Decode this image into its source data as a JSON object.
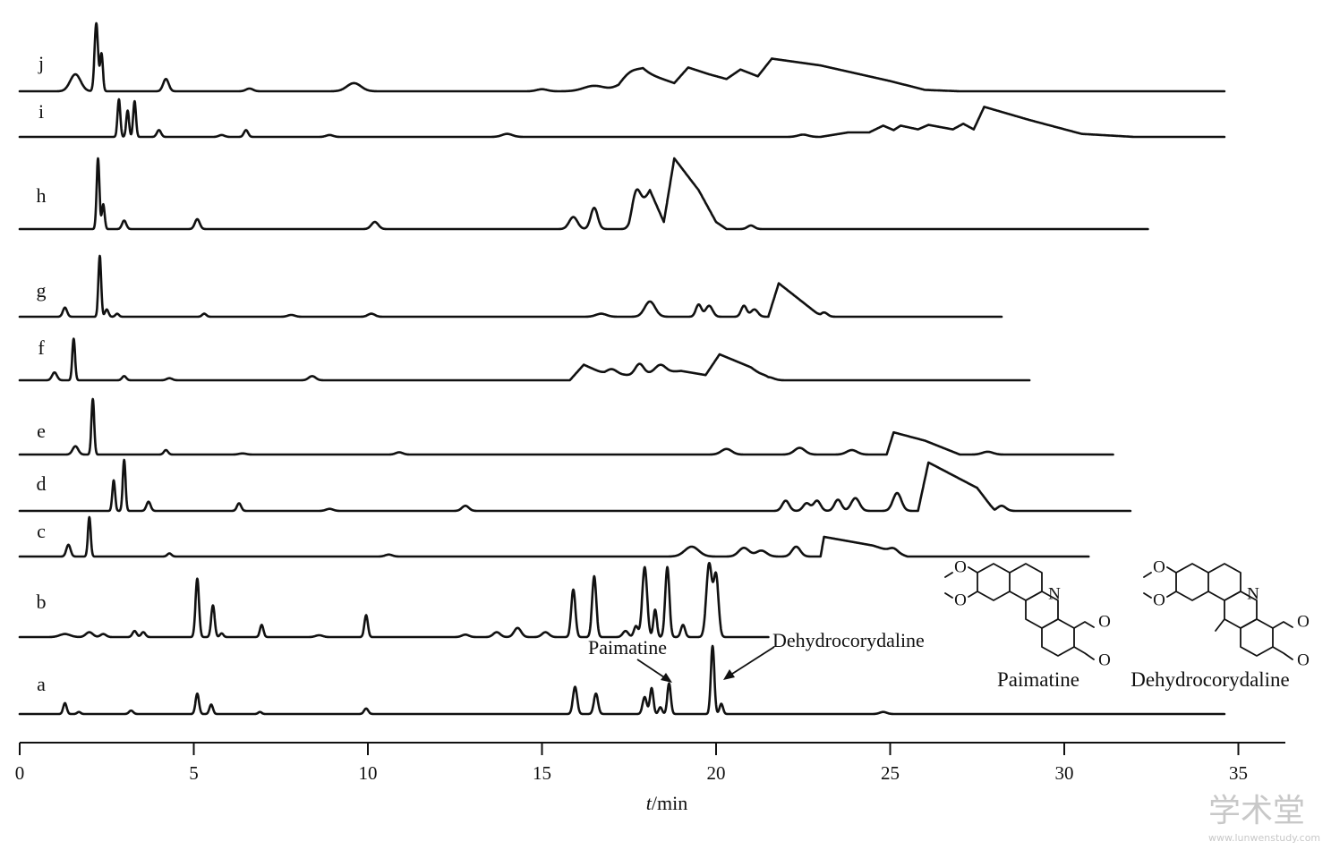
{
  "chart_data": {
    "type": "line",
    "xlabel_italic": "t",
    "xlabel_rest": "/min",
    "xlim": [
      0,
      35
    ],
    "xticks": [
      0,
      5,
      10,
      15,
      20,
      25,
      30,
      35
    ],
    "series": [
      {
        "name": "j",
        "x_end": 34.6,
        "peaks": [
          [
            1.6,
            0.25,
            0.15
          ],
          [
            2.2,
            1.0,
            0.05
          ],
          [
            2.35,
            0.55,
            0.04
          ],
          [
            4.2,
            0.18,
            0.08
          ],
          [
            6.6,
            0.04,
            0.1
          ],
          [
            9.6,
            0.12,
            0.2
          ],
          [
            15,
            0.03,
            0.15
          ],
          [
            16.5,
            0.08,
            0.3
          ],
          [
            17.5,
            0.15,
            0.3
          ]
        ],
        "hump": [
          [
            17.2,
            0.0
          ],
          [
            17.9,
            0.28
          ],
          [
            18.8,
            0.12
          ],
          [
            19.2,
            0.35
          ],
          [
            19.8,
            0.25
          ],
          [
            20.3,
            0.18
          ],
          [
            20.7,
            0.32
          ],
          [
            21.2,
            0.22
          ],
          [
            21.6,
            0.48
          ],
          [
            23.0,
            0.38
          ],
          [
            25.0,
            0.15
          ],
          [
            26.0,
            0.02
          ],
          [
            27.0,
            0.0
          ]
        ]
      },
      {
        "name": "i",
        "x_end": 34.6,
        "peaks": [
          [
            2.85,
            1.0,
            0.04
          ],
          [
            3.1,
            0.7,
            0.04
          ],
          [
            3.3,
            0.95,
            0.04
          ],
          [
            4.0,
            0.18,
            0.06
          ],
          [
            5.8,
            0.05,
            0.08
          ],
          [
            6.5,
            0.18,
            0.06
          ],
          [
            8.9,
            0.05,
            0.1
          ],
          [
            14.0,
            0.08,
            0.15
          ],
          [
            22.5,
            0.06,
            0.15
          ]
        ],
        "hump": [
          [
            23.0,
            0.0
          ],
          [
            23.8,
            0.12
          ],
          [
            24.4,
            0.12
          ],
          [
            24.8,
            0.3
          ],
          [
            25.1,
            0.18
          ],
          [
            25.3,
            0.3
          ],
          [
            25.8,
            0.2
          ],
          [
            26.1,
            0.32
          ],
          [
            26.8,
            0.2
          ],
          [
            27.1,
            0.35
          ],
          [
            27.4,
            0.2
          ],
          [
            27.7,
            0.8
          ],
          [
            29.0,
            0.45
          ],
          [
            30.5,
            0.08
          ],
          [
            32.0,
            0.0
          ]
        ]
      },
      {
        "name": "h",
        "x_end": 32.4,
        "peaks": [
          [
            2.25,
            1.0,
            0.04
          ],
          [
            2.4,
            0.35,
            0.04
          ],
          [
            3.0,
            0.12,
            0.06
          ],
          [
            5.1,
            0.14,
            0.07
          ],
          [
            10.2,
            0.1,
            0.1
          ],
          [
            15.9,
            0.17,
            0.12
          ],
          [
            16.5,
            0.3,
            0.1
          ],
          [
            17.7,
            0.36,
            0.12
          ],
          [
            21.0,
            0.05,
            0.1
          ]
        ],
        "hump": [
          [
            17.5,
            0.0
          ],
          [
            18.1,
            0.55
          ],
          [
            18.5,
            0.1
          ],
          [
            18.8,
            1.0
          ],
          [
            19.5,
            0.55
          ],
          [
            20.0,
            0.1
          ],
          [
            20.3,
            0.0
          ]
        ]
      },
      {
        "name": "g",
        "x_end": 28.2,
        "peaks": [
          [
            1.3,
            0.15,
            0.06
          ],
          [
            2.3,
            1.0,
            0.04
          ],
          [
            2.5,
            0.12,
            0.05
          ],
          [
            2.8,
            0.05,
            0.05
          ],
          [
            5.3,
            0.05,
            0.06
          ],
          [
            7.8,
            0.03,
            0.1
          ],
          [
            10.1,
            0.05,
            0.1
          ],
          [
            16.7,
            0.05,
            0.15
          ],
          [
            18.1,
            0.25,
            0.15
          ],
          [
            19.5,
            0.2,
            0.08
          ],
          [
            19.8,
            0.18,
            0.1
          ],
          [
            20.8,
            0.18,
            0.08
          ],
          [
            21.1,
            0.12,
            0.1
          ],
          [
            23.1,
            0.07,
            0.1
          ]
        ],
        "hump": [
          [
            21.5,
            0.0
          ],
          [
            21.8,
            0.55
          ],
          [
            22.8,
            0.1
          ],
          [
            23.0,
            0.0
          ]
        ]
      },
      {
        "name": "f",
        "x_end": 29.0,
        "peaks": [
          [
            1.0,
            0.15,
            0.07
          ],
          [
            1.55,
            0.8,
            0.04
          ],
          [
            3.0,
            0.08,
            0.06
          ],
          [
            4.3,
            0.04,
            0.08
          ],
          [
            8.4,
            0.08,
            0.1
          ],
          [
            17.0,
            0.1,
            0.15
          ],
          [
            17.8,
            0.2,
            0.12
          ],
          [
            18.4,
            0.15,
            0.15
          ],
          [
            21.5,
            0.06,
            0.15
          ]
        ],
        "hump": [
          [
            15.8,
            0.0
          ],
          [
            16.2,
            0.3
          ],
          [
            16.8,
            0.12
          ],
          [
            17.5,
            0.1
          ],
          [
            19.0,
            0.18
          ],
          [
            19.7,
            0.1
          ],
          [
            20.1,
            0.5
          ],
          [
            21.0,
            0.25
          ],
          [
            21.5,
            0.0
          ]
        ]
      },
      {
        "name": "e",
        "x_end": 31.4,
        "peaks": [
          [
            1.6,
            0.15,
            0.08
          ],
          [
            2.1,
            1.0,
            0.04
          ],
          [
            4.2,
            0.08,
            0.06
          ],
          [
            6.4,
            0.02,
            0.1
          ],
          [
            10.9,
            0.04,
            0.1
          ],
          [
            20.3,
            0.1,
            0.15
          ],
          [
            22.4,
            0.12,
            0.15
          ],
          [
            23.9,
            0.08,
            0.15
          ],
          [
            27.8,
            0.05,
            0.15
          ]
        ],
        "hump": [
          [
            24.9,
            0.0
          ],
          [
            25.1,
            0.4
          ],
          [
            26.0,
            0.25
          ],
          [
            27.0,
            0.0
          ]
        ]
      },
      {
        "name": "d",
        "x_end": 31.9,
        "peaks": [
          [
            2.7,
            0.6,
            0.04
          ],
          [
            3.0,
            1.0,
            0.04
          ],
          [
            3.7,
            0.18,
            0.06
          ],
          [
            6.3,
            0.15,
            0.06
          ],
          [
            8.9,
            0.04,
            0.1
          ],
          [
            12.8,
            0.1,
            0.1
          ],
          [
            22.0,
            0.2,
            0.1
          ],
          [
            22.6,
            0.15,
            0.1
          ],
          [
            22.9,
            0.2,
            0.1
          ],
          [
            23.5,
            0.22,
            0.1
          ],
          [
            24.0,
            0.25,
            0.12
          ],
          [
            25.2,
            0.35,
            0.12
          ],
          [
            28.2,
            0.1,
            0.12
          ]
        ],
        "hump": [
          [
            25.8,
            0.0
          ],
          [
            26.1,
            0.95
          ],
          [
            27.5,
            0.45
          ],
          [
            28.0,
            0.0
          ]
        ]
      },
      {
        "name": "c",
        "x_end": 30.7,
        "peaks": [
          [
            1.4,
            0.3,
            0.06
          ],
          [
            2.0,
            1.0,
            0.04
          ],
          [
            4.3,
            0.08,
            0.06
          ],
          [
            10.6,
            0.05,
            0.1
          ],
          [
            19.3,
            0.25,
            0.2
          ],
          [
            20.8,
            0.22,
            0.15
          ],
          [
            21.3,
            0.15,
            0.15
          ],
          [
            22.3,
            0.25,
            0.12
          ],
          [
            25.1,
            0.1,
            0.12
          ]
        ],
        "hump": [
          [
            23.0,
            0.0
          ],
          [
            23.1,
            0.5
          ],
          [
            24.5,
            0.28
          ],
          [
            25.5,
            0.0
          ]
        ]
      },
      {
        "name": "b",
        "x_end": 21.5,
        "peaks": [
          [
            1.3,
            0.05,
            0.15
          ],
          [
            2.0,
            0.08,
            0.1
          ],
          [
            2.4,
            0.05,
            0.08
          ],
          [
            3.3,
            0.1,
            0.06
          ],
          [
            3.55,
            0.08,
            0.06
          ],
          [
            5.1,
            0.96,
            0.05
          ],
          [
            5.55,
            0.52,
            0.05
          ],
          [
            5.8,
            0.06,
            0.05
          ],
          [
            6.95,
            0.2,
            0.05
          ],
          [
            8.6,
            0.03,
            0.1
          ],
          [
            9.95,
            0.36,
            0.05
          ],
          [
            12.8,
            0.04,
            0.1
          ],
          [
            13.7,
            0.08,
            0.1
          ],
          [
            14.3,
            0.15,
            0.1
          ],
          [
            15.1,
            0.08,
            0.1
          ],
          [
            15.9,
            0.78,
            0.06
          ],
          [
            16.5,
            1.0,
            0.06
          ],
          [
            17.4,
            0.1,
            0.08
          ],
          [
            17.7,
            0.18,
            0.06
          ],
          [
            17.95,
            1.15,
            0.07
          ],
          [
            18.25,
            0.45,
            0.05
          ],
          [
            18.6,
            1.15,
            0.06
          ],
          [
            19.05,
            0.2,
            0.06
          ],
          [
            19.8,
            1.2,
            0.08
          ],
          [
            20.0,
            1.0,
            0.07
          ]
        ],
        "hump": []
      },
      {
        "name": "a",
        "x_end": 34.6,
        "peaks": [
          [
            1.3,
            0.16,
            0.05
          ],
          [
            1.7,
            0.03,
            0.05
          ],
          [
            3.2,
            0.05,
            0.06
          ],
          [
            5.1,
            0.3,
            0.05
          ],
          [
            5.5,
            0.14,
            0.05
          ],
          [
            6.9,
            0.03,
            0.05
          ],
          [
            9.95,
            0.08,
            0.06
          ],
          [
            15.95,
            0.4,
            0.06
          ],
          [
            16.55,
            0.3,
            0.06
          ],
          [
            17.95,
            0.25,
            0.06
          ],
          [
            18.15,
            0.38,
            0.05
          ],
          [
            18.4,
            0.1,
            0.05
          ],
          [
            18.65,
            0.45,
            0.05
          ],
          [
            19.9,
            1.0,
            0.05
          ],
          [
            20.15,
            0.15,
            0.05
          ],
          [
            24.8,
            0.03,
            0.1
          ]
        ],
        "hump": []
      }
    ]
  },
  "annotations": {
    "paimatine_label": "Paimatine",
    "dehydro_label": "Dehydrocorydaline"
  },
  "structures": {
    "paimatine_name": "Paimatine",
    "dehydro_name": "Dehydrocorydaline",
    "atom_N": "N",
    "atom_O": "O"
  },
  "watermark": {
    "text": "学术堂",
    "url": "www.lunwenstudy.com"
  }
}
